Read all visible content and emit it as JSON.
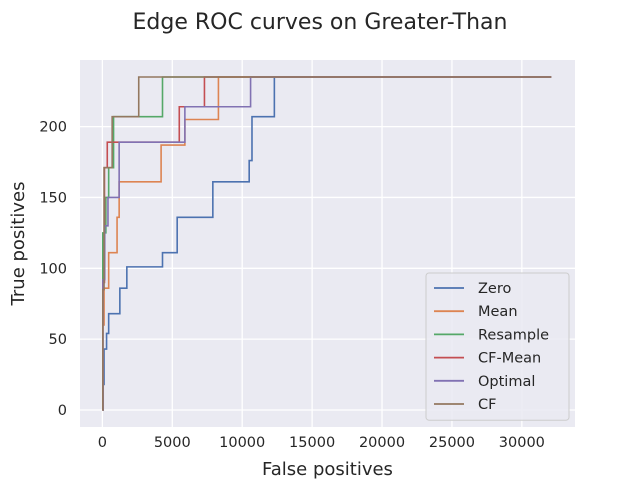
{
  "chart_data": {
    "type": "line",
    "title": "Edge ROC curves on Greater-Than",
    "xlabel": "False positives",
    "ylabel": "True positives",
    "xlim": [
      -1600,
      33800
    ],
    "ylim": [
      -12,
      247
    ],
    "xticks": [
      0,
      5000,
      10000,
      15000,
      20000,
      25000,
      30000
    ],
    "yticks": [
      0,
      50,
      100,
      150,
      200
    ],
    "grid": true,
    "legend_position": "lower-right",
    "series": [
      {
        "name": "Zero",
        "color": "#4c72b0",
        "points": [
          [
            0,
            0
          ],
          [
            60,
            0
          ],
          [
            60,
            18
          ],
          [
            120,
            18
          ],
          [
            120,
            43
          ],
          [
            300,
            43
          ],
          [
            300,
            54
          ],
          [
            450,
            54
          ],
          [
            450,
            68
          ],
          [
            1250,
            68
          ],
          [
            1250,
            86
          ],
          [
            1750,
            86
          ],
          [
            1750,
            101
          ],
          [
            4300,
            101
          ],
          [
            4300,
            111
          ],
          [
            5350,
            111
          ],
          [
            5350,
            136
          ],
          [
            7900,
            136
          ],
          [
            7900,
            161
          ],
          [
            10500,
            161
          ],
          [
            10500,
            176
          ],
          [
            10700,
            176
          ],
          [
            10700,
            207
          ],
          [
            12300,
            207
          ],
          [
            12300,
            235
          ],
          [
            32100,
            235
          ]
        ]
      },
      {
        "name": "Mean",
        "color": "#dd8452",
        "points": [
          [
            0,
            0
          ],
          [
            40,
            0
          ],
          [
            40,
            60
          ],
          [
            120,
            60
          ],
          [
            120,
            86
          ],
          [
            450,
            86
          ],
          [
            450,
            111
          ],
          [
            1050,
            111
          ],
          [
            1050,
            136
          ],
          [
            1200,
            136
          ],
          [
            1200,
            161
          ],
          [
            4200,
            161
          ],
          [
            4200,
            187
          ],
          [
            5900,
            187
          ],
          [
            5900,
            205
          ],
          [
            8300,
            205
          ],
          [
            8300,
            235
          ],
          [
            32100,
            235
          ]
        ]
      },
      {
        "name": "Resample",
        "color": "#55a868",
        "points": [
          [
            0,
            0
          ],
          [
            30,
            0
          ],
          [
            30,
            125
          ],
          [
            250,
            125
          ],
          [
            250,
            150
          ],
          [
            450,
            150
          ],
          [
            450,
            171
          ],
          [
            800,
            171
          ],
          [
            800,
            207
          ],
          [
            4300,
            207
          ],
          [
            4300,
            235
          ],
          [
            32100,
            235
          ]
        ]
      },
      {
        "name": "CF-Mean",
        "color": "#c44e52",
        "points": [
          [
            0,
            0
          ],
          [
            30,
            0
          ],
          [
            30,
            90
          ],
          [
            150,
            90
          ],
          [
            150,
            171
          ],
          [
            350,
            171
          ],
          [
            350,
            189
          ],
          [
            5500,
            189
          ],
          [
            5500,
            214
          ],
          [
            7300,
            214
          ],
          [
            7300,
            235
          ],
          [
            32100,
            235
          ]
        ]
      },
      {
        "name": "Optimal",
        "color": "#8172b3",
        "points": [
          [
            0,
            0
          ],
          [
            40,
            0
          ],
          [
            40,
            92
          ],
          [
            170,
            92
          ],
          [
            170,
            130
          ],
          [
            400,
            130
          ],
          [
            400,
            150
          ],
          [
            1200,
            150
          ],
          [
            1200,
            189
          ],
          [
            5900,
            189
          ],
          [
            5900,
            214
          ],
          [
            10600,
            214
          ],
          [
            10600,
            235
          ],
          [
            32100,
            235
          ]
        ]
      },
      {
        "name": "CF",
        "color": "#937860",
        "points": [
          [
            0,
            0
          ],
          [
            30,
            0
          ],
          [
            30,
            85
          ],
          [
            120,
            85
          ],
          [
            120,
            171
          ],
          [
            700,
            171
          ],
          [
            700,
            207
          ],
          [
            2600,
            207
          ],
          [
            2600,
            235
          ],
          [
            32100,
            235
          ]
        ]
      }
    ]
  }
}
